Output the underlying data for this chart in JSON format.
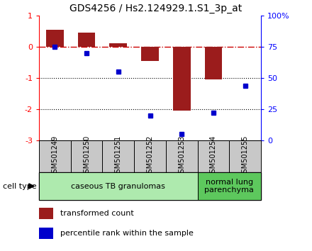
{
  "title": "GDS4256 / Hs2.124929.1.S1_3p_at",
  "samples": [
    "GSM501249",
    "GSM501250",
    "GSM501251",
    "GSM501252",
    "GSM501253",
    "GSM501254",
    "GSM501255"
  ],
  "transformed_count": [
    0.55,
    0.45,
    0.12,
    -0.45,
    -2.05,
    -1.05,
    0.01
  ],
  "percentile_rank": [
    75,
    70,
    55,
    20,
    5,
    22,
    44
  ],
  "ylim_left": [
    -3,
    1
  ],
  "ylim_right": [
    0,
    100
  ],
  "bar_color": "#9B1C1C",
  "dot_color": "#0000CC",
  "hline_color": "#CC0000",
  "groups": [
    {
      "label": "caseous TB granulomas",
      "start": 0,
      "end": 5,
      "color": "#AEEAAE"
    },
    {
      "label": "normal lung\nparenchyma",
      "start": 5,
      "end": 7,
      "color": "#5DC85D"
    }
  ],
  "cell_type_label": "cell type",
  "legend_bar_label": "transformed count",
  "legend_dot_label": "percentile rank within the sample",
  "bar_width": 0.55,
  "figsize": [
    4.4,
    3.54
  ],
  "dpi": 100
}
